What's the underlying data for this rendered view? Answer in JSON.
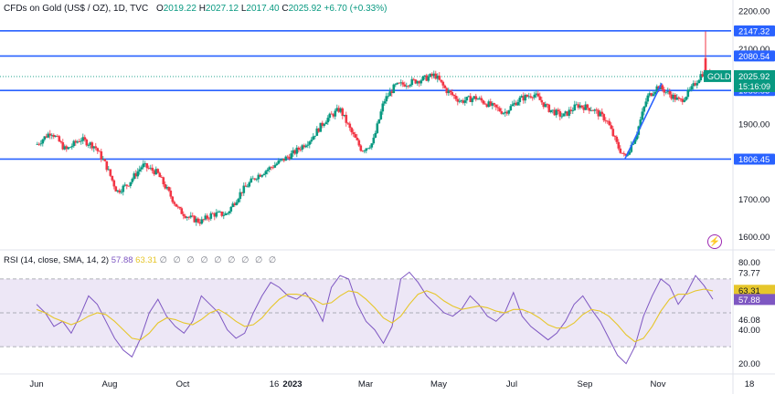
{
  "header": {
    "symbol": "CFDs on Gold (US$ / OZ), 1D, TVC",
    "o_label": "O",
    "o_value": "2019.22",
    "h_label": "H",
    "h_value": "2027.12",
    "l_label": "L",
    "l_value": "2017.40",
    "c_label": "C",
    "c_value": "2025.92",
    "change": "+6.70 (+0.33%)"
  },
  "rsi_header": {
    "label": "RSI (14, close, SMA, 14, 2)",
    "rsi_value": "57.88",
    "ma_value": "63.31",
    "hidden_values": "∅ ∅ ∅ ∅ ∅ ∅ ∅ ∅ ∅"
  },
  "colors": {
    "up": "#089981",
    "down": "#f23645",
    "level": "#2962ff",
    "rsi": "#7e57c2",
    "rsi_ma": "#e6c62b",
    "rsi_band": "#ede7f6",
    "gold_tag": "#089981",
    "price_line": "#089981"
  },
  "chart_data": [
    {
      "type": "candlestick",
      "price_axis_ticks": [
        "2200.00",
        "2100.00",
        "1900.00",
        "1800.00",
        "1700.00",
        "1600.00"
      ],
      "ylim": [
        1570,
        2210
      ],
      "x_tick_labels": [
        "Jun",
        "Aug",
        "Oct",
        "16",
        "2023",
        "Mar",
        "May",
        "Jul",
        "Sep",
        "Nov",
        "18"
      ],
      "x_ticks_month_index": [
        0,
        2,
        4,
        6.5,
        7,
        9,
        11,
        13,
        15,
        17,
        19.5
      ],
      "level_lines": [
        {
          "label": "2147.32",
          "value": 2147.32
        },
        {
          "label": "2080.54",
          "value": 2080.54
        },
        {
          "label": "1988.85",
          "value": 1988.85
        },
        {
          "label": "1806.45",
          "value": 1806.45
        }
      ],
      "last_price": {
        "symbol": "GOLD",
        "value": 2025.92,
        "label": "2025.92",
        "countdown": "15:16:09"
      },
      "trend_line": {
        "from": {
          "month": 16.1,
          "price": 1808
        },
        "to": {
          "month": 17.1,
          "price": 2008
        }
      },
      "price_path": [
        [
          0,
          1845
        ],
        [
          0.4,
          1880
        ],
        [
          0.8,
          1830
        ],
        [
          1.2,
          1860
        ],
        [
          1.6,
          1840
        ],
        [
          1.9,
          1790
        ],
        [
          2.2,
          1720
        ],
        [
          2.5,
          1740
        ],
        [
          2.9,
          1790
        ],
        [
          3.3,
          1770
        ],
        [
          3.6,
          1720
        ],
        [
          3.9,
          1670
        ],
        [
          4.2,
          1650
        ],
        [
          4.5,
          1640
        ],
        [
          4.8,
          1660
        ],
        [
          5.2,
          1660
        ],
        [
          5.6,
          1720
        ],
        [
          6.0,
          1760
        ],
        [
          6.5,
          1790
        ],
        [
          7.0,
          1820
        ],
        [
          7.5,
          1860
        ],
        [
          7.9,
          1910
        ],
        [
          8.3,
          1940
        ],
        [
          8.6,
          1880
        ],
        [
          8.9,
          1830
        ],
        [
          9.2,
          1850
        ],
        [
          9.5,
          1960
        ],
        [
          9.8,
          2000
        ],
        [
          10.2,
          2010
        ],
        [
          10.6,
          2020
        ],
        [
          10.9,
          2030
        ],
        [
          11.2,
          1990
        ],
        [
          11.6,
          1960
        ],
        [
          12.0,
          1970
        ],
        [
          12.4,
          1950
        ],
        [
          12.8,
          1930
        ],
        [
          13.2,
          1965
        ],
        [
          13.6,
          1980
        ],
        [
          14.0,
          1940
        ],
        [
          14.4,
          1920
        ],
        [
          14.8,
          1950
        ],
        [
          15.2,
          1940
        ],
        [
          15.6,
          1910
        ],
        [
          15.9,
          1840
        ],
        [
          16.1,
          1810
        ],
        [
          16.4,
          1870
        ],
        [
          16.7,
          1970
        ],
        [
          17.0,
          2000
        ],
        [
          17.3,
          1980
        ],
        [
          17.6,
          1960
        ],
        [
          17.9,
          1990
        ],
        [
          18.2,
          2035
        ],
        [
          18.5,
          2026
        ]
      ],
      "spike": {
        "month": 18.3,
        "high": 2146
      }
    },
    {
      "type": "line",
      "title": "RSI (14, close, SMA, 14, 2)",
      "y_axis_ticks": [
        "80.00",
        "73.77",
        "63.31",
        "57.88",
        "46.08",
        "40.00",
        "20.00"
      ],
      "ylim": [
        15,
        85
      ],
      "band": [
        30,
        70
      ],
      "series": [
        {
          "name": "RSI",
          "values": [
            55,
            50,
            42,
            45,
            38,
            48,
            60,
            55,
            45,
            35,
            28,
            24,
            35,
            50,
            58,
            48,
            42,
            38,
            45,
            60,
            55,
            50,
            40,
            35,
            38,
            50,
            60,
            68,
            65,
            60,
            58,
            62,
            55,
            45,
            65,
            72,
            70,
            55,
            45,
            40,
            32,
            42,
            70,
            74,
            68,
            60,
            55,
            50,
            48,
            52,
            60,
            55,
            48,
            45,
            50,
            62,
            48,
            42,
            38,
            34,
            38,
            45,
            55,
            60,
            52,
            45,
            35,
            25,
            20,
            30,
            48,
            60,
            70,
            66,
            55,
            62,
            72,
            66,
            58
          ]
        },
        {
          "name": "MA",
          "values": [
            52,
            50,
            47,
            45,
            43,
            45,
            48,
            50,
            49,
            45,
            40,
            35,
            34,
            38,
            44,
            47,
            46,
            44,
            43,
            46,
            50,
            52,
            49,
            45,
            42,
            43,
            47,
            53,
            58,
            61,
            61,
            60,
            58,
            55,
            56,
            60,
            63,
            62,
            58,
            53,
            47,
            44,
            48,
            55,
            61,
            63,
            61,
            57,
            54,
            52,
            53,
            54,
            53,
            51,
            50,
            52,
            52,
            50,
            47,
            43,
            41,
            41,
            44,
            49,
            52,
            51,
            48,
            43,
            37,
            33,
            35,
            42,
            51,
            58,
            61,
            61,
            63,
            64,
            63
          ]
        }
      ]
    }
  ]
}
